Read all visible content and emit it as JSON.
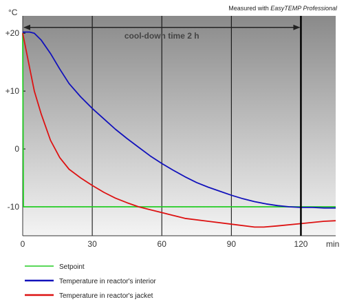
{
  "chart_data": {
    "type": "line",
    "title": "",
    "credit_prefix": "Measured with ",
    "credit_product": "EasyTEMP Professional",
    "y_unit": "°C",
    "x_unit": "min",
    "xlim": [
      0,
      135
    ],
    "ylim": [
      -15,
      23
    ],
    "x_ticks": [
      0,
      30,
      60,
      90,
      120
    ],
    "y_ticks": [
      {
        "value": 20,
        "label": "+20"
      },
      {
        "value": 10,
        "label": "+10"
      },
      {
        "value": 0,
        "label": "0"
      },
      {
        "value": -10,
        "label": "-10"
      }
    ],
    "vertical_gridlines": [
      30,
      60,
      90
    ],
    "annotation": {
      "text": "cool-down time 2 h",
      "from": 0,
      "to": 120,
      "y": 21
    },
    "marker_line_x": 120,
    "colors": {
      "setpoint": "#22cc22",
      "interior": "#1111bb",
      "jacket": "#dd1111",
      "background_top": "#8a8a8a",
      "background_bottom": "#f4f4f4"
    },
    "series": [
      {
        "key": "setpoint",
        "name": "Setpoint",
        "color": "#22cc22",
        "x": [
          0,
          0.3,
          135
        ],
        "y": [
          20,
          -10,
          -10
        ]
      },
      {
        "key": "interior",
        "name": "Temperature in reactor's interior",
        "color": "#1111bb",
        "x": [
          0,
          3,
          5,
          8,
          12,
          16,
          20,
          25,
          30,
          35,
          40,
          45,
          50,
          55,
          60,
          65,
          70,
          75,
          80,
          85,
          90,
          95,
          100,
          105,
          110,
          115,
          120,
          125,
          130,
          135
        ],
        "y": [
          20.2,
          20.2,
          20.0,
          18.8,
          16.5,
          13.8,
          11.3,
          9.0,
          7.0,
          5.2,
          3.4,
          1.8,
          0.3,
          -1.2,
          -2.5,
          -3.7,
          -4.8,
          -5.8,
          -6.6,
          -7.3,
          -8.0,
          -8.6,
          -9.1,
          -9.5,
          -9.8,
          -10.0,
          -10.1,
          -10.1,
          -10.2,
          -10.2
        ]
      },
      {
        "key": "jacket",
        "name": "Temperature in reactor's jacket",
        "color": "#dd1111",
        "x": [
          0,
          1,
          3,
          5,
          8,
          12,
          16,
          20,
          25,
          30,
          35,
          40,
          45,
          50,
          55,
          60,
          65,
          70,
          80,
          90,
          100,
          104,
          110,
          120,
          130,
          135
        ],
        "y": [
          20,
          18,
          14,
          10,
          6,
          1.5,
          -1.5,
          -3.5,
          -5.0,
          -6.3,
          -7.5,
          -8.5,
          -9.3,
          -10.0,
          -10.5,
          -11.0,
          -11.5,
          -12.0,
          -12.5,
          -13.0,
          -13.5,
          -13.5,
          -13.3,
          -12.9,
          -12.5,
          -12.4
        ]
      }
    ],
    "legend": {
      "placement": "bottom-left",
      "items": [
        {
          "key": "setpoint",
          "label": "Setpoint",
          "color": "#22cc22"
        },
        {
          "key": "interior",
          "label": "Temperature in reactor's interior",
          "color": "#1111bb"
        },
        {
          "key": "jacket",
          "label": "Temperature in reactor's jacket",
          "color": "#dd1111"
        }
      ]
    }
  }
}
